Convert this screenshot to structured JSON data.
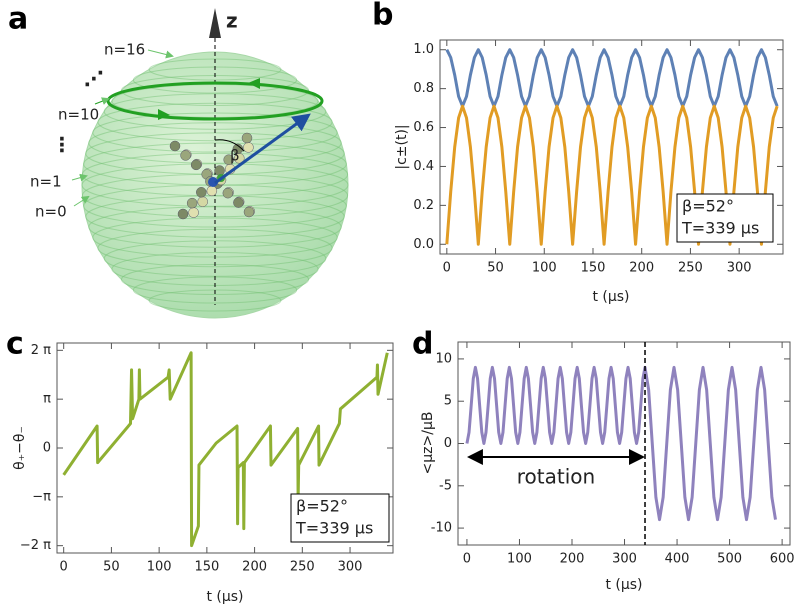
{
  "diagram": {
    "panel": "a",
    "axis_label": "z",
    "level_labels": [
      "n=16",
      "n=10",
      "n=1",
      "n=0"
    ],
    "angle_label": "β",
    "ellipsis": [
      "⋰",
      "⋮"
    ]
  },
  "chart_data": [
    {
      "type": "line",
      "panel": "b",
      "xlabel": "t (μs)",
      "ylabel": "|c±(t)|",
      "annotation": [
        "β=52°",
        "T=339 μs"
      ],
      "x": [
        0,
        4.0,
        8.1,
        12.1,
        16.1,
        20.2,
        24.2,
        28.3,
        32.3,
        36.3,
        40.4,
        44.4,
        48.4,
        52.5,
        56.5,
        60.5,
        64.6,
        68.6,
        72.6,
        76.7,
        80.7,
        84.8,
        88.8,
        92.8,
        96.9,
        100.9,
        104.9,
        109.0,
        113.0,
        117.0,
        121.1,
        125.1,
        129.1,
        133.2,
        137.2,
        141.3,
        145.3,
        149.3,
        153.4,
        157.4,
        161.4,
        165.5,
        169.5,
        173.5,
        177.6,
        181.6,
        185.6,
        189.7,
        193.7,
        197.8,
        201.8,
        205.8,
        209.9,
        213.9,
        217.9,
        222.0,
        226.0,
        230.0,
        234.1,
        238.1,
        242.1,
        246.2,
        250.2,
        254.3,
        258.3,
        262.3,
        266.4,
        270.4,
        274.4,
        278.5,
        282.5,
        286.5,
        290.6,
        294.6,
        298.6,
        302.7,
        306.7,
        310.8,
        314.8,
        318.8,
        322.9,
        326.9,
        330.9,
        335.0,
        339.0
      ],
      "series": [
        {
          "color": "#5e81b5",
          "values": [
            1,
            0.96,
            0.87,
            0.76,
            0.71,
            0.76,
            0.87,
            0.96,
            1,
            0.96,
            0.87,
            0.76,
            0.71,
            0.76,
            0.87,
            0.96,
            1,
            0.96,
            0.87,
            0.76,
            0.71,
            0.76,
            0.87,
            0.96,
            1,
            0.96,
            0.87,
            0.76,
            0.71,
            0.76,
            0.87,
            0.96,
            1,
            0.96,
            0.87,
            0.76,
            0.71,
            0.76,
            0.87,
            0.96,
            1,
            0.96,
            0.87,
            0.76,
            0.71,
            0.76,
            0.87,
            0.96,
            1,
            0.96,
            0.87,
            0.76,
            0.71,
            0.76,
            0.87,
            0.96,
            1,
            0.96,
            0.87,
            0.76,
            0.71,
            0.76,
            0.87,
            0.96,
            1,
            0.96,
            0.87,
            0.76,
            0.71,
            0.76,
            0.87,
            0.96,
            1,
            0.96,
            0.87,
            0.76,
            0.71,
            0.76,
            0.87,
            0.96,
            1,
            0.96,
            0.87,
            0.76,
            0.71
          ]
        },
        {
          "color": "#e19c24",
          "values": [
            0,
            0.27,
            0.5,
            0.65,
            0.71,
            0.65,
            0.5,
            0.27,
            0,
            0.27,
            0.5,
            0.65,
            0.71,
            0.65,
            0.5,
            0.27,
            0,
            0.27,
            0.5,
            0.65,
            0.71,
            0.65,
            0.5,
            0.27,
            0,
            0.27,
            0.5,
            0.65,
            0.71,
            0.65,
            0.5,
            0.27,
            0,
            0.27,
            0.5,
            0.65,
            0.71,
            0.65,
            0.5,
            0.27,
            0,
            0.27,
            0.5,
            0.65,
            0.71,
            0.65,
            0.5,
            0.27,
            0,
            0.27,
            0.5,
            0.65,
            0.71,
            0.65,
            0.5,
            0.27,
            0,
            0.27,
            0.5,
            0.65,
            0.71,
            0.65,
            0.5,
            0.27,
            0,
            0.27,
            0.5,
            0.65,
            0.71,
            0.65,
            0.5,
            0.27,
            0,
            0.27,
            0.5,
            0.65,
            0.71,
            0.65,
            0.5,
            0.27,
            0,
            0.27,
            0.5,
            0.65,
            0.71
          ]
        }
      ],
      "xlim": [
        -7,
        345
      ],
      "ylim": [
        -0.05,
        1.05
      ],
      "xticks": [
        0,
        50,
        100,
        150,
        200,
        250,
        300
      ],
      "yticks": [
        {
          "value": 0,
          "label": "0.0"
        },
        0.2,
        0.4,
        0.6,
        0.8,
        {
          "value": 1,
          "label": "1.0"
        }
      ]
    },
    {
      "type": "line",
      "panel": "c",
      "xlabel": "t (μs)",
      "ylabel": "θ₊−θ₋",
      "annotation": [
        "β=52°",
        "T=339 μs"
      ],
      "x": [
        0,
        35,
        35.6,
        70,
        71.1,
        72.2,
        78.8,
        79.3,
        79.9,
        109.4,
        110.5,
        111.6,
        133.5,
        134,
        141.1,
        141.7,
        159.7,
        181.6,
        182.2,
        182.7,
        188.2,
        188.7,
        189.3,
        216.6,
        217.2,
        245.1,
        245.6,
        246.2,
        267,
        267.5,
        288.8,
        289.9,
        328.2,
        328.7,
        329.3,
        339
      ],
      "series": [
        {
          "color": "#8fb032",
          "values": [
            -0.55,
            0.45,
            -0.3,
            0.5,
            1.6,
            0.6,
            1.0,
            1.6,
            1.0,
            1.45,
            1.6,
            1.0,
            1.95,
            -2.0,
            -1.6,
            -0.35,
            0.1,
            0.45,
            -1.55,
            -0.4,
            -0.3,
            -1.65,
            -0.3,
            0.45,
            -0.35,
            0.4,
            -1.05,
            -0.35,
            0.45,
            -0.35,
            0.5,
            0.8,
            1.45,
            1.7,
            1.1,
            1.95
          ]
        }
      ],
      "xlim": [
        -7,
        345
      ],
      "ylim": [
        -2.15,
        2.15
      ],
      "xticks": [
        0,
        50,
        100,
        150,
        200,
        250,
        300
      ],
      "yticks": [
        {
          "value": -2,
          "label": "−2 π"
        },
        {
          "value": -1,
          "label": "−π"
        },
        0,
        {
          "value": 1,
          "label": "π"
        },
        {
          "value": 2,
          "label": "2 π"
        }
      ]
    },
    {
      "type": "line",
      "panel": "d",
      "xlabel": "t (μs)",
      "ylabel": "<μz>/μB",
      "annotation": "rotation",
      "vline_x": 339,
      "x": [
        0,
        4.0,
        8.1,
        12.1,
        16.1,
        20.2,
        24.2,
        28.3,
        32.3,
        36.3,
        40.4,
        44.4,
        48.4,
        52.5,
        56.5,
        60.5,
        64.6,
        68.6,
        72.6,
        76.7,
        80.7,
        84.8,
        88.8,
        92.8,
        96.9,
        100.9,
        104.9,
        109.0,
        113.0,
        117.0,
        121.1,
        125.1,
        129.1,
        133.2,
        137.2,
        141.3,
        145.3,
        149.3,
        153.4,
        157.4,
        161.4,
        165.5,
        169.5,
        173.5,
        177.6,
        181.6,
        185.6,
        189.7,
        193.7,
        197.8,
        201.8,
        205.8,
        209.9,
        213.9,
        217.9,
        222.0,
        226.0,
        230.0,
        234.1,
        238.1,
        242.1,
        246.2,
        250.2,
        254.3,
        258.3,
        262.3,
        266.4,
        270.4,
        274.4,
        278.5,
        282.5,
        286.5,
        290.6,
        294.6,
        298.6,
        302.7,
        306.7,
        310.8,
        314.8,
        318.8,
        322.9,
        326.9,
        330.9,
        335.0,
        339.0,
        345.9,
        352.8,
        359.7,
        366.6,
        373.5,
        380.4,
        387.3,
        394.2,
        401.1,
        408,
        414.9,
        421.8,
        428.7,
        435.6,
        442.5,
        449.4,
        456.3,
        463.2,
        470.1,
        477,
        483.9,
        490.8,
        497.7,
        504.6,
        511.5,
        518.4,
        525.3,
        532.2,
        539.1,
        546,
        552.9,
        559.8,
        566.7,
        573.6,
        580.5,
        587.4
      ],
      "series": [
        {
          "color": "#8f82bd",
          "values": [
            0,
            1.32,
            4.5,
            7.68,
            9,
            7.68,
            4.5,
            1.32,
            0,
            1.32,
            4.5,
            7.68,
            9,
            7.68,
            4.5,
            1.32,
            0,
            1.32,
            4.5,
            7.68,
            9,
            7.68,
            4.5,
            1.32,
            0,
            1.32,
            4.5,
            7.68,
            9,
            7.68,
            4.5,
            1.32,
            0,
            1.32,
            4.5,
            7.68,
            9,
            7.68,
            4.5,
            1.32,
            0,
            1.32,
            4.5,
            7.68,
            9,
            7.68,
            4.5,
            1.32,
            0,
            1.32,
            4.5,
            7.68,
            9,
            7.68,
            4.5,
            1.32,
            0,
            1.32,
            4.5,
            7.68,
            9,
            7.68,
            4.5,
            1.32,
            0,
            1.32,
            4.5,
            7.68,
            9,
            7.68,
            4.5,
            1.32,
            0,
            1.32,
            4.5,
            7.68,
            9,
            7.68,
            4.5,
            1.32,
            0,
            1.32,
            4.5,
            7.68,
            9,
            6.36,
            0,
            -6.36,
            -9,
            -6.36,
            0,
            6.36,
            9,
            6.36,
            0,
            -6.36,
            -9,
            -6.36,
            0,
            6.36,
            9,
            6.36,
            0,
            -6.36,
            -9,
            -6.36,
            0,
            6.36,
            9,
            6.36,
            0,
            -6.36,
            -9,
            -6.36,
            0,
            6.36,
            9,
            6.36,
            0,
            -6.36,
            -9
          ]
        }
      ],
      "xlim": [
        -17,
        615
      ],
      "ylim": [
        -12,
        12
      ],
      "xticks": [
        0,
        100,
        200,
        300,
        400,
        500,
        600
      ],
      "yticks": [
        -10,
        -5,
        0,
        5,
        10
      ]
    }
  ]
}
